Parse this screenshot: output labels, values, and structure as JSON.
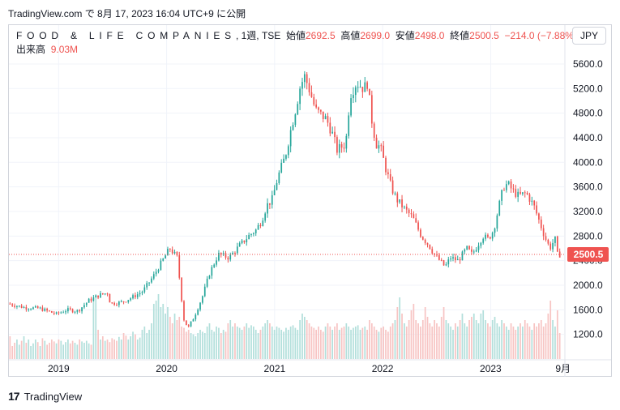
{
  "header": {
    "source_line": "TradingView.com で 8月 17, 2023 16:04 UTC+9 に公開"
  },
  "legend": {
    "symbol": "FOOD & LIFE COMPANIES",
    "interval_exchange": ", 1週, TSE",
    "open_label": "始値",
    "open": "2692.5",
    "high_label": "高値",
    "high": "2699.0",
    "low_label": "安値",
    "low": "2498.0",
    "close_label": "終値",
    "close": "2500.5",
    "change": "−214.0 (−7.88%)",
    "volume_label": "出来高",
    "volume": "9.03M"
  },
  "currency_button": "JPY",
  "footer": {
    "logo": "17",
    "brand": "TradingView"
  },
  "colors": {
    "up": "#26a69a",
    "down": "#ef5350",
    "up_volume": "#b2dfdb",
    "down_volume": "#f7c4c3",
    "grid": "#f0f3fa"
  },
  "chart_data": {
    "type": "candlestick",
    "title": "FOOD & LIFE COMPANIES, 1週, TSE",
    "ylim": [
      800,
      5850
    ],
    "yticks": [
      "1200.0",
      "1600.0",
      "2000.0",
      "2400.0",
      "2800.0",
      "3200.0",
      "3600.0",
      "4000.0",
      "4400.0",
      "4800.0",
      "5200.0",
      "5600.0"
    ],
    "xticks": [
      "2019",
      "2020",
      "2021",
      "2022",
      "2023",
      "9月"
    ],
    "x_range": [
      2018.54,
      2023.68
    ],
    "last_price": "2500.5",
    "grid": true,
    "price_path": [
      [
        2018.55,
        1700
      ],
      [
        2018.7,
        1640
      ],
      [
        2018.85,
        1620
      ],
      [
        2018.95,
        1560
      ],
      [
        2019.0,
        1530
      ],
      [
        2019.1,
        1600
      ],
      [
        2019.2,
        1580
      ],
      [
        2019.3,
        1750
      ],
      [
        2019.4,
        1840
      ],
      [
        2019.48,
        1880
      ],
      [
        2019.5,
        1700
      ],
      [
        2019.6,
        1720
      ],
      [
        2019.7,
        1800
      ],
      [
        2019.8,
        1900
      ],
      [
        2019.9,
        2150
      ],
      [
        2020.0,
        2450
      ],
      [
        2020.05,
        2600
      ],
      [
        2020.12,
        2450
      ],
      [
        2020.18,
        1450
      ],
      [
        2020.22,
        1300
      ],
      [
        2020.28,
        1500
      ],
      [
        2020.35,
        1800
      ],
      [
        2020.42,
        2200
      ],
      [
        2020.5,
        2500
      ],
      [
        2020.6,
        2450
      ],
      [
        2020.7,
        2650
      ],
      [
        2020.78,
        2800
      ],
      [
        2020.85,
        2900
      ],
      [
        2020.9,
        3050
      ],
      [
        2020.95,
        3300
      ],
      [
        2021.0,
        3400
      ],
      [
        2021.05,
        3750
      ],
      [
        2021.12,
        4100
      ],
      [
        2021.18,
        4600
      ],
      [
        2021.22,
        4900
      ],
      [
        2021.26,
        5250
      ],
      [
        2021.3,
        5400
      ],
      [
        2021.35,
        5150
      ],
      [
        2021.4,
        4850
      ],
      [
        2021.5,
        4700
      ],
      [
        2021.55,
        4500
      ],
      [
        2021.6,
        4200
      ],
      [
        2021.68,
        4300
      ],
      [
        2021.72,
        5100
      ],
      [
        2021.78,
        5300
      ],
      [
        2021.85,
        5200
      ],
      [
        2021.88,
        5300
      ],
      [
        2021.92,
        4700
      ],
      [
        2021.96,
        4300
      ],
      [
        2022.0,
        4250
      ],
      [
        2022.05,
        3900
      ],
      [
        2022.1,
        3600
      ],
      [
        2022.15,
        3400
      ],
      [
        2022.22,
        3250
      ],
      [
        2022.3,
        3100
      ],
      [
        2022.38,
        2800
      ],
      [
        2022.45,
        2650
      ],
      [
        2022.5,
        2500
      ],
      [
        2022.55,
        2400
      ],
      [
        2022.6,
        2300
      ],
      [
        2022.65,
        2450
      ],
      [
        2022.72,
        2400
      ],
      [
        2022.8,
        2600
      ],
      [
        2022.85,
        2500
      ],
      [
        2022.9,
        2650
      ],
      [
        2022.95,
        2800
      ],
      [
        2023.0,
        2750
      ],
      [
        2023.05,
        2900
      ],
      [
        2023.1,
        3300
      ],
      [
        2023.14,
        3600
      ],
      [
        2023.18,
        3650
      ],
      [
        2023.22,
        3550
      ],
      [
        2023.28,
        3450
      ],
      [
        2023.35,
        3500
      ],
      [
        2023.42,
        3300
      ],
      [
        2023.47,
        3050
      ],
      [
        2023.52,
        2800
      ],
      [
        2023.57,
        2600
      ],
      [
        2023.6,
        2700
      ],
      [
        2023.62,
        2750
      ],
      [
        2023.64,
        2500
      ]
    ],
    "volume_bars": [
      0.35,
      0.2,
      0.25,
      0.3,
      0.22,
      0.28,
      0.35,
      0.25,
      0.3,
      0.2,
      0.24,
      0.3,
      0.26,
      0.2,
      0.32,
      0.28,
      0.22,
      0.25,
      0.3,
      0.27,
      0.24,
      0.3,
      0.28,
      0.22,
      0.26,
      0.3,
      0.24,
      0.28,
      0.25,
      0.22,
      0.3,
      0.27,
      0.25,
      0.28,
      0.24,
      0.22,
      0.9,
      1.0,
      0.45,
      0.3,
      0.35,
      0.28,
      0.3,
      0.26,
      0.32,
      0.3,
      0.28,
      0.34,
      0.3,
      0.4,
      0.36,
      0.3,
      0.35,
      0.42,
      0.38,
      0.3,
      0.33,
      0.45,
      0.5,
      0.4,
      0.45,
      0.55,
      0.85,
      0.9,
      1.0,
      0.8,
      0.85,
      0.7,
      0.8,
      0.65,
      0.55,
      0.7,
      0.6,
      0.65,
      0.5,
      0.48,
      0.42,
      0.45,
      0.4,
      0.38,
      0.35,
      0.4,
      0.45,
      0.42,
      0.4,
      0.5,
      0.55,
      0.45,
      0.42,
      0.5,
      0.48,
      0.4,
      0.45,
      0.42,
      0.55,
      0.6,
      0.5,
      0.55,
      0.5,
      0.48,
      0.45,
      0.5,
      0.55,
      0.48,
      0.52,
      0.5,
      0.45,
      0.4,
      0.45,
      0.5,
      0.55,
      0.6,
      0.55,
      0.5,
      0.45,
      0.5,
      0.48,
      0.45,
      0.42,
      0.48,
      0.45,
      0.5,
      0.52,
      0.48,
      0.45,
      0.6,
      0.7,
      0.65,
      0.6,
      0.55,
      0.5,
      0.48,
      0.45,
      0.5,
      0.45,
      0.42,
      0.5,
      0.55,
      0.5,
      0.45,
      0.5,
      0.55,
      0.45,
      0.48,
      0.5,
      0.55,
      0.5,
      0.45,
      0.48,
      0.5,
      0.52,
      0.45,
      0.48,
      0.5,
      0.45,
      0.6,
      0.55,
      0.5,
      0.45,
      0.42,
      0.48,
      0.5,
      0.45,
      0.42,
      0.5,
      0.55,
      0.6,
      0.8,
      0.95,
      0.7,
      0.55,
      0.5,
      0.6,
      0.75,
      0.85,
      0.6,
      0.55,
      0.5,
      0.6,
      0.8,
      0.65,
      0.55,
      0.5,
      0.6,
      0.55,
      0.5,
      0.65,
      0.8,
      0.6,
      0.55,
      0.5,
      0.45,
      0.55,
      0.5,
      0.6,
      0.7,
      0.55,
      0.5,
      0.6,
      0.65,
      0.7,
      0.6,
      0.55,
      0.7,
      0.75,
      0.6,
      0.55,
      0.5,
      0.6,
      0.65,
      0.55,
      0.5,
      0.6,
      0.55,
      0.5,
      0.45,
      0.55,
      0.5,
      0.45,
      0.5,
      0.55,
      0.5,
      0.6,
      0.55,
      0.5,
      0.45,
      0.55,
      0.5,
      0.55,
      0.6,
      0.5,
      0.55,
      0.7,
      0.9,
      0.6,
      0.5,
      0.75,
      0.4
    ]
  }
}
